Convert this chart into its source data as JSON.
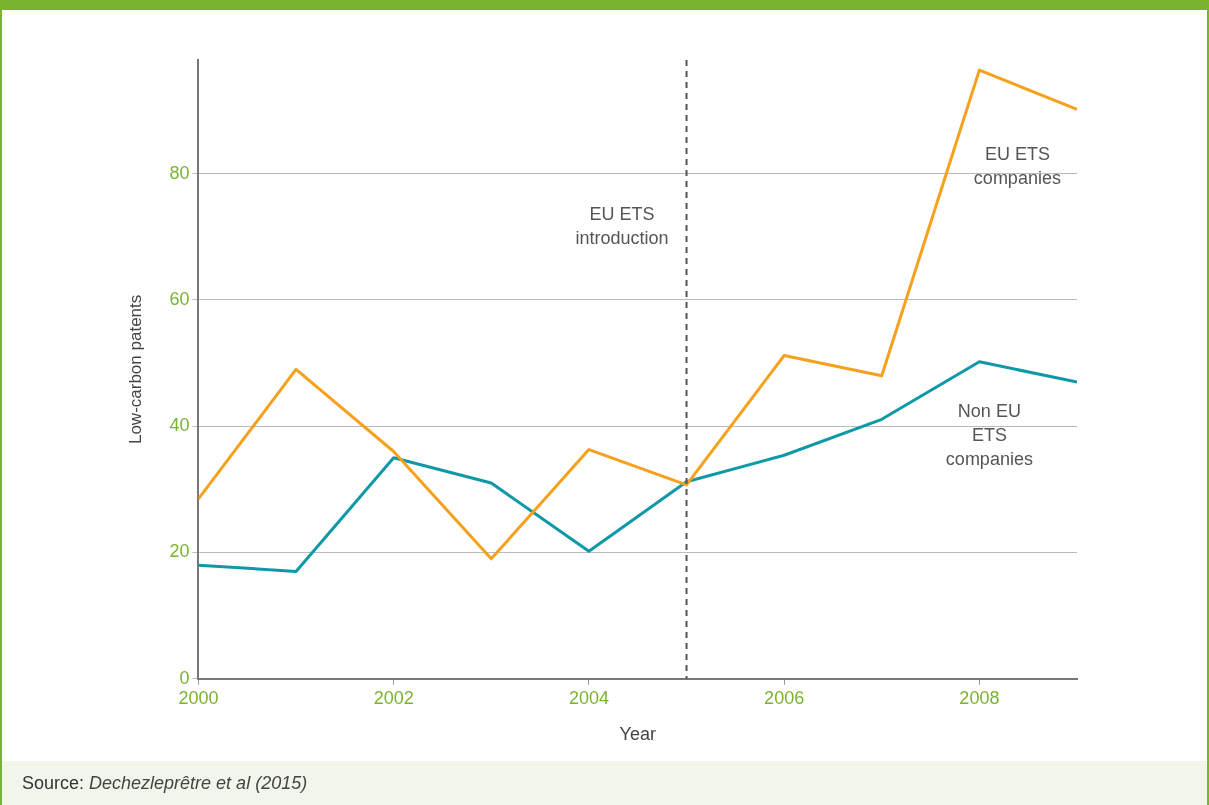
{
  "chart_data": {
    "type": "line",
    "x": [
      2000,
      2001,
      2002,
      2003,
      2004,
      2005,
      2006,
      2007,
      2008,
      2009
    ],
    "series": [
      {
        "name": "EU ETS companies",
        "color": "#f5a11c",
        "values": [
          28.5,
          49,
          36,
          19,
          36.3,
          30.7,
          51.2,
          48,
          96.4,
          90.2
        ]
      },
      {
        "name": "Non EU ETS companies",
        "color": "#0e98a8",
        "values": [
          18,
          17,
          35,
          31,
          20.2,
          31.2,
          35.4,
          41.1,
          50.2,
          47
        ]
      }
    ],
    "xlim": [
      2000,
      2009
    ],
    "xticks": [
      2000,
      2002,
      2004,
      2006,
      2008
    ],
    "ylim": [
      0,
      98
    ],
    "yticks": [
      0,
      20,
      40,
      60,
      80
    ],
    "xlabel": "Year",
    "ylabel": "Low-carbon patents",
    "ref_lines": [
      {
        "axis": "x",
        "value": 2005,
        "label": "EU ETS introduction",
        "line_style": "dashed",
        "color": "#555555"
      }
    ],
    "grid": "y",
    "legend": false,
    "marker": "none",
    "line_style": "solid",
    "annotations": [
      "Source: Dechezleprêtre et al (2015)"
    ]
  }
}
